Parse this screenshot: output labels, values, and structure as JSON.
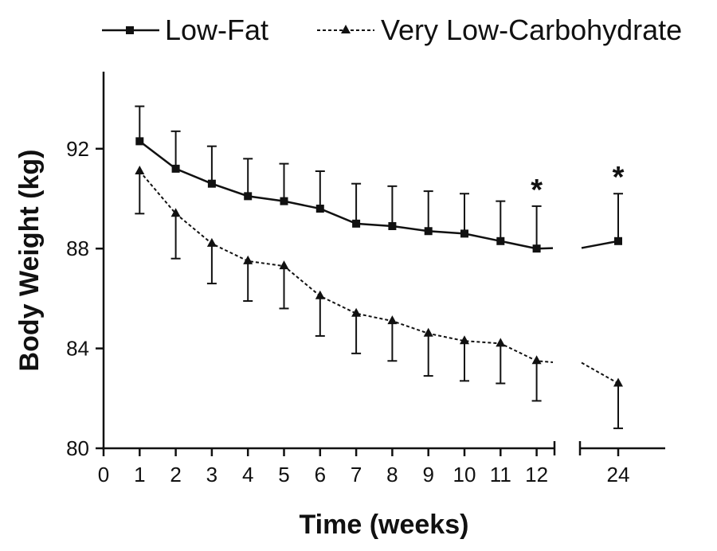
{
  "chart_data": {
    "type": "line",
    "title": "",
    "xlabel": "Time (weeks)",
    "ylabel": "Body Weight (kg)",
    "xticks": [
      "0",
      "1",
      "2",
      "3",
      "4",
      "5",
      "6",
      "7",
      "8",
      "9",
      "10",
      "11",
      "12",
      "24"
    ],
    "yticks": [
      "80",
      "84",
      "88",
      "92"
    ],
    "ylim": [
      80,
      95
    ],
    "x_axis_break": "between 12 and 24",
    "legend_position": "top",
    "series": [
      {
        "name": "Low-Fat",
        "marker": "square",
        "line_style": "solid",
        "x": [
          1,
          2,
          3,
          4,
          5,
          6,
          7,
          8,
          9,
          10,
          11,
          12,
          24
        ],
        "values": [
          92.3,
          91.2,
          90.6,
          90.1,
          89.9,
          89.6,
          89.0,
          88.9,
          88.7,
          88.6,
          88.3,
          88.0,
          88.3
        ],
        "error_upper": [
          93.7,
          92.7,
          92.1,
          91.6,
          91.4,
          91.1,
          90.6,
          90.5,
          90.3,
          90.2,
          89.9,
          89.7,
          90.2
        ]
      },
      {
        "name": "Very Low-Carbohydrate",
        "marker": "triangle",
        "line_style": "dashed",
        "x": [
          1,
          2,
          3,
          4,
          5,
          6,
          7,
          8,
          9,
          10,
          11,
          12,
          24
        ],
        "values": [
          91.1,
          89.4,
          88.2,
          87.5,
          87.3,
          86.1,
          85.4,
          85.1,
          84.6,
          84.3,
          84.2,
          83.5,
          82.6
        ],
        "error_lower": [
          89.4,
          87.6,
          86.6,
          85.9,
          85.6,
          84.5,
          83.8,
          83.5,
          82.9,
          82.7,
          82.6,
          81.9,
          80.8
        ]
      }
    ],
    "annotations": [
      {
        "text": "*",
        "x": 12
      },
      {
        "text": "*",
        "x": 24
      }
    ]
  },
  "colors": {
    "ink": "#111111",
    "background": "#ffffff"
  }
}
